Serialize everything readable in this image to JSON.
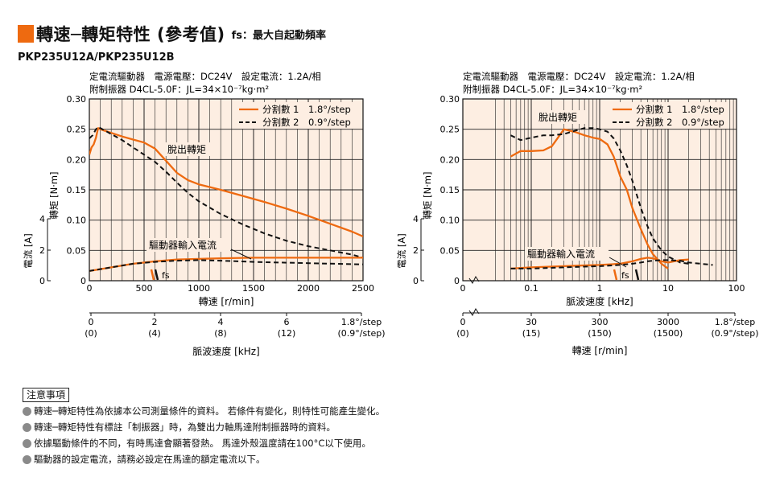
{
  "header": {
    "title": "轉速─轉矩特性 (參考值)",
    "fs_note": "fs：最大自起動頻率",
    "model": "PKP235U12A/PKP235U12B"
  },
  "colors": {
    "accent": "#ee6a10",
    "plot_bg": "#fdeee2",
    "grid": "#222222"
  },
  "charts": [
    {
      "id": "left",
      "cond1": "定電流驅動器　電源電壓：DC24V　設定電流：1.2A/相",
      "cond2": "附制振器 D4CL-5.0F：JL=34×10⁻⁷kg·m²",
      "legend1": "分割數 1　1.8°/step",
      "legend2": "分割數 2　0.9°/step",
      "label_pullout": "脫出轉矩",
      "label_current": "驅動器輸入電流",
      "label_fs": "fs",
      "ylabel": "轉矩 [N·m]",
      "y2label": "電流 [A]",
      "xlabel": "轉速 [r/min]",
      "x2label": "脈波速度 [kHz]",
      "y_ticks": [
        "0.30",
        "0.25",
        "0.20",
        "0.15",
        "0.10",
        "0.05",
        "0"
      ],
      "y2_ticks": [
        "4",
        "2",
        "0"
      ],
      "x_ticks": [
        "0",
        "500",
        "1000",
        "1500",
        "2000",
        "2500"
      ],
      "pulse_ticks": [
        "0",
        "2",
        "4",
        "6",
        "1.8°/step"
      ],
      "pulse_ticks_half": [
        "(0)",
        "(4)",
        "(8)",
        "(12)",
        "(0.9°/step)"
      ]
    },
    {
      "id": "right",
      "cond1": "定電流驅動器　電源電壓：DC24V　設定電流：1.2A/相",
      "cond2": "附制振器 D4CL-5.0F：JL=34×10⁻⁷kg·m²",
      "legend1": "分割數 1　1.8°/step",
      "legend2": "分割數 2　0.9°/step",
      "label_pullout": "脫出轉矩",
      "label_current": "驅動器輸入電流",
      "label_fs": "fs",
      "ylabel": "轉矩 [N·m]",
      "y2label": "電流 [A]",
      "xlabel": "脈波速度 [kHz]",
      "x2label": "轉速 [r/min]",
      "y_ticks": [
        "0.30",
        "0.25",
        "0.20",
        "0.15",
        "0.10",
        "0.05",
        "0"
      ],
      "y2_ticks": [
        "4",
        "2",
        "0"
      ],
      "x_ticks": [
        "0",
        "0.1",
        "1",
        "10",
        "100"
      ],
      "speed_ticks": [
        "0",
        "30",
        "300",
        "3000",
        "1.8°/step"
      ],
      "speed_ticks_half": [
        "(0)",
        "(15)",
        "(150)",
        "(1500)",
        "(0.9°/step)"
      ]
    }
  ],
  "chart_data": [
    {
      "type": "line",
      "xlabel": "轉速 [r/min]",
      "ylabel": "轉矩 [N·m]",
      "xlim": [
        0,
        2500
      ],
      "ylim": [
        0,
        0.3
      ],
      "series": [
        {
          "name": "分割數 1　1.8°/step",
          "style": "solid",
          "x": [
            0,
            20,
            40,
            60,
            80,
            100,
            200,
            300,
            400,
            500,
            600,
            700,
            800,
            900,
            1000,
            1200,
            1400,
            1600,
            1800,
            2000,
            2200,
            2400,
            2500
          ],
          "y": [
            0.208,
            0.22,
            0.225,
            0.236,
            0.252,
            0.25,
            0.244,
            0.238,
            0.233,
            0.228,
            0.218,
            0.198,
            0.178,
            0.166,
            0.159,
            0.15,
            0.14,
            0.13,
            0.119,
            0.107,
            0.094,
            0.081,
            0.073
          ]
        },
        {
          "name": "分割數 2　0.9°/step",
          "style": "dashed",
          "x": [
            0,
            30,
            60,
            80,
            100,
            200,
            300,
            400,
            500,
            600,
            700,
            800,
            900,
            1000,
            1200,
            1400,
            1600,
            1800,
            2000,
            2200,
            2400,
            2500
          ],
          "y": [
            0.235,
            0.24,
            0.25,
            0.254,
            0.252,
            0.242,
            0.232,
            0.22,
            0.208,
            0.196,
            0.18,
            0.162,
            0.145,
            0.131,
            0.11,
            0.093,
            0.078,
            0.066,
            0.057,
            0.05,
            0.043,
            0.038
          ]
        },
        {
          "name": "驅動器輸入電流 分割數 1",
          "style": "solid",
          "x": [
            0,
            200,
            400,
            600,
            800,
            1000,
            1200,
            1500,
            2000,
            2500
          ],
          "y": [
            0.016,
            0.022,
            0.028,
            0.032,
            0.035,
            0.036,
            0.037,
            0.038,
            0.038,
            0.038
          ]
        },
        {
          "name": "驅動器輸入電流 分割數 2",
          "style": "dashed",
          "x": [
            0,
            200,
            400,
            600,
            800,
            1000,
            1200,
            1500,
            2000,
            2500
          ],
          "y": [
            0.016,
            0.022,
            0.028,
            0.031,
            0.033,
            0.034,
            0.033,
            0.031,
            0.029,
            0.027
          ]
        }
      ]
    },
    {
      "type": "line",
      "xlabel": "脈波速度 [kHz]",
      "ylabel": "轉矩 [N·m]",
      "x_scale": "log",
      "xlim": [
        0.01,
        100
      ],
      "ylim": [
        0,
        0.3
      ],
      "series": [
        {
          "name": "分割數 1　1.8°/step",
          "style": "solid",
          "x": [
            0.05,
            0.07,
            0.1,
            0.15,
            0.2,
            0.3,
            0.45,
            0.6,
            0.8,
            1,
            1.3,
            1.6,
            2,
            2.5,
            3,
            4,
            5,
            6,
            8,
            10
          ],
          "y": [
            0.205,
            0.214,
            0.214,
            0.215,
            0.222,
            0.25,
            0.245,
            0.24,
            0.236,
            0.234,
            0.225,
            0.205,
            0.172,
            0.15,
            0.12,
            0.085,
            0.06,
            0.044,
            0.028,
            0.02
          ]
        },
        {
          "name": "分割數 2　0.9°/step",
          "style": "dashed",
          "x": [
            0.05,
            0.07,
            0.1,
            0.15,
            0.2,
            0.3,
            0.45,
            0.6,
            0.8,
            1,
            1.3,
            1.6,
            2,
            2.5,
            3,
            4,
            5,
            6,
            8,
            10,
            15,
            20
          ],
          "y": [
            0.24,
            0.232,
            0.236,
            0.24,
            0.24,
            0.242,
            0.248,
            0.252,
            0.252,
            0.25,
            0.246,
            0.235,
            0.215,
            0.19,
            0.165,
            0.12,
            0.09,
            0.07,
            0.05,
            0.04,
            0.03,
            0.028
          ]
        },
        {
          "name": "驅動器輸入電流 分割數 1",
          "style": "solid",
          "x": [
            0.05,
            0.1,
            0.3,
            0.5,
            1,
            2,
            3,
            4,
            5,
            6,
            8,
            10,
            15,
            20
          ],
          "y": [
            0.02,
            0.022,
            0.024,
            0.025,
            0.026,
            0.028,
            0.032,
            0.036,
            0.038,
            0.037,
            0.032,
            0.03,
            0.034,
            0.035
          ]
        },
        {
          "name": "驅動器輸入電流 分割數 2",
          "style": "dashed",
          "x": [
            0.05,
            0.1,
            0.3,
            0.5,
            1,
            2,
            3,
            4,
            5,
            6,
            8,
            10,
            15,
            20,
            30,
            45
          ],
          "y": [
            0.02,
            0.02,
            0.022,
            0.023,
            0.024,
            0.026,
            0.028,
            0.03,
            0.032,
            0.033,
            0.034,
            0.034,
            0.033,
            0.03,
            0.028,
            0.026
          ]
        }
      ]
    }
  ],
  "notes": {
    "title": "注意事項",
    "items": [
      "轉速─轉矩特性為依據本公司測量條件的資料。 若條件有變化，則特性可能產生變化。",
      "轉速─轉矩特性有標註「制振器」時，為雙出力軸馬達附制振器時的資料。",
      "依據驅動條件的不同，有時馬達會顯著發熱。 馬達外殼溫度請在100°C以下使用。",
      "驅動器的設定電流，請務必設定在馬達的額定電流以下。"
    ]
  }
}
